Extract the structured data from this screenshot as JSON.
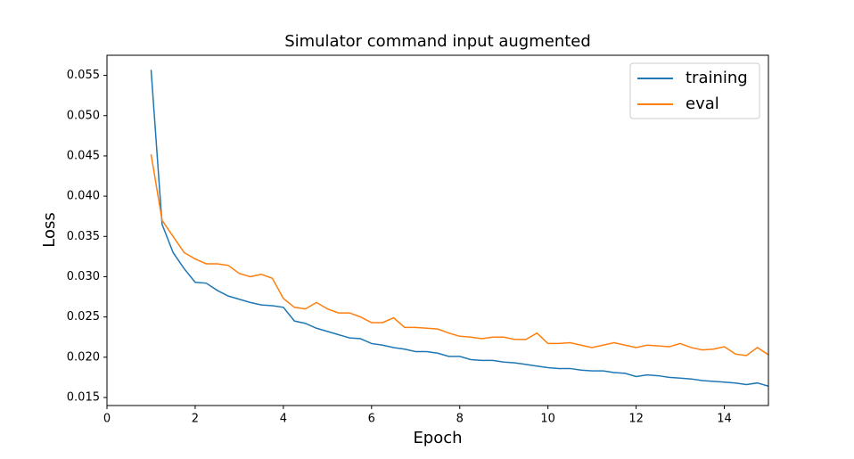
{
  "chart_data": {
    "type": "line",
    "title": "Simulator command input augmented",
    "xlabel": "Epoch",
    "ylabel": "Loss",
    "x": [
      1,
      1.25,
      1.5,
      1.75,
      2,
      2.25,
      2.5,
      2.75,
      3,
      3.25,
      3.5,
      3.75,
      4,
      4.25,
      4.5,
      4.75,
      5,
      5.25,
      5.5,
      5.75,
      6,
      6.25,
      6.5,
      6.75,
      7,
      7.25,
      7.5,
      7.75,
      8,
      8.25,
      8.5,
      8.75,
      9,
      9.25,
      9.5,
      9.75,
      10,
      10.25,
      10.5,
      10.75,
      11,
      11.25,
      11.5,
      11.75,
      12,
      12.25,
      12.5,
      12.75,
      13,
      13.25,
      13.5,
      13.75,
      14,
      14.25,
      14.5,
      14.75,
      15
    ],
    "series": [
      {
        "name": "training",
        "color": "#1f77b4",
        "values": [
          0.0557,
          0.0365,
          0.033,
          0.031,
          0.0293,
          0.0292,
          0.0283,
          0.0276,
          0.0272,
          0.0268,
          0.0265,
          0.0264,
          0.0262,
          0.0245,
          0.0242,
          0.0236,
          0.0232,
          0.0228,
          0.0224,
          0.0223,
          0.0217,
          0.0215,
          0.0212,
          0.021,
          0.0207,
          0.0207,
          0.0205,
          0.0201,
          0.0201,
          0.0197,
          0.0196,
          0.0196,
          0.0194,
          0.0193,
          0.0191,
          0.0189,
          0.0187,
          0.0186,
          0.0186,
          0.0184,
          0.0183,
          0.0183,
          0.0181,
          0.018,
          0.0176,
          0.0178,
          0.0177,
          0.0175,
          0.0174,
          0.0173,
          0.0171,
          0.017,
          0.0169,
          0.0168,
          0.0166,
          0.0168,
          0.0164
        ]
      },
      {
        "name": "eval",
        "color": "#ff7f0e",
        "values": [
          0.0452,
          0.037,
          0.035,
          0.033,
          0.0322,
          0.0316,
          0.0316,
          0.0314,
          0.0304,
          0.03,
          0.0303,
          0.0298,
          0.0273,
          0.0262,
          0.026,
          0.0268,
          0.026,
          0.0255,
          0.0255,
          0.025,
          0.0243,
          0.0243,
          0.0249,
          0.0237,
          0.0237,
          0.0236,
          0.0235,
          0.023,
          0.0226,
          0.0225,
          0.0223,
          0.0225,
          0.0225,
          0.0222,
          0.0222,
          0.023,
          0.0217,
          0.0217,
          0.0218,
          0.0215,
          0.0212,
          0.0215,
          0.0218,
          0.0215,
          0.0212,
          0.0215,
          0.0214,
          0.0213,
          0.0217,
          0.0212,
          0.0209,
          0.021,
          0.0213,
          0.0204,
          0.0202,
          0.0212,
          0.0203
        ]
      }
    ],
    "xlim": [
      0,
      15
    ],
    "xticks": [
      0,
      2,
      4,
      6,
      8,
      10,
      12,
      14
    ],
    "ylim": [
      0.014,
      0.0575
    ],
    "yticks": [
      0.015,
      {
        "value": 0.02,
        "label": "0.020"
      },
      0.025,
      {
        "value": 0.03,
        "label": "0.030"
      },
      0.035,
      {
        "value": 0.04,
        "label": "0.040"
      },
      0.045,
      {
        "value": 0.05,
        "label": "0.050"
      },
      0.055
    ],
    "legend": "upper right",
    "grid": false
  }
}
